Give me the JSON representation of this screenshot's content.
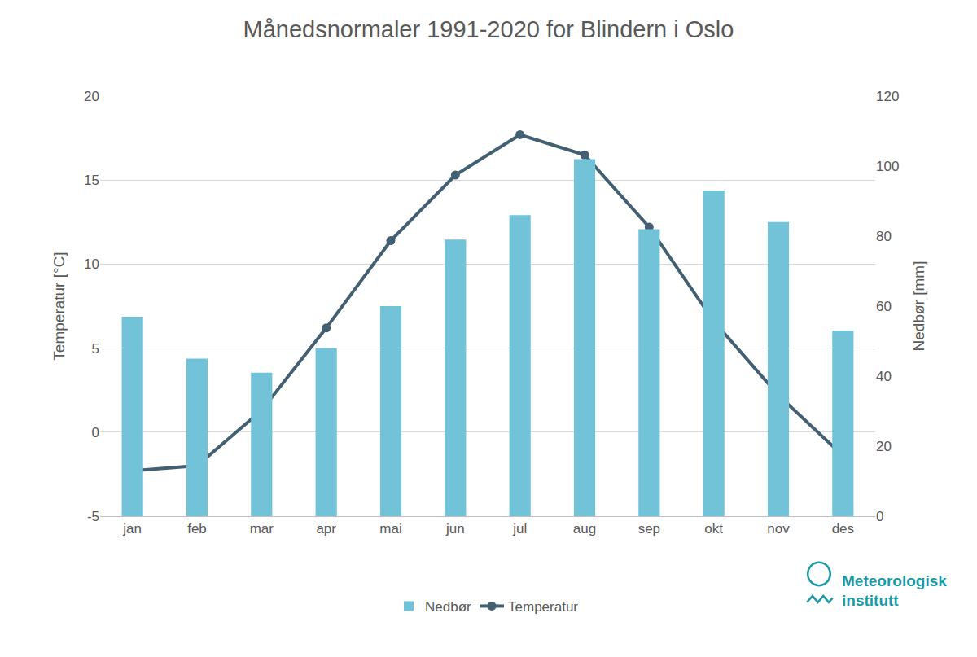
{
  "chart_data": {
    "type": "bar",
    "title": "Månedsnormaler 1991-2020 for Blindern i Oslo",
    "categories": [
      "jan",
      "feb",
      "mar",
      "apr",
      "mai",
      "jun",
      "jul",
      "aug",
      "sep",
      "okt",
      "nov",
      "des"
    ],
    "series": [
      {
        "name": "Nedbør",
        "type": "bar",
        "axis": "y2",
        "color": "#72c3d7",
        "values": [
          57,
          45,
          41,
          48,
          60,
          79,
          86,
          102,
          82,
          93,
          84,
          53
        ]
      },
      {
        "name": "Temperatur",
        "type": "line",
        "color": "#436073",
        "marker": "circle",
        "values": [
          -2.3,
          -2.0,
          1.3,
          6.2,
          11.4,
          15.3,
          17.7,
          16.5,
          12.2,
          6.6,
          2.2,
          -1.4
        ]
      }
    ],
    "ylabel": "Temperatur [°C]",
    "y2label": "Nedbør [mm]",
    "ylim": [
      -5,
      20
    ],
    "yticks": [
      -5,
      0,
      5,
      10,
      15,
      20
    ],
    "y2lim": [
      0,
      120
    ],
    "y2ticks": [
      0,
      20,
      40,
      60,
      80,
      100,
      120
    ],
    "grid": true,
    "legend": "bottom",
    "annotations": [
      "Meteorologisk",
      "institutt"
    ]
  }
}
